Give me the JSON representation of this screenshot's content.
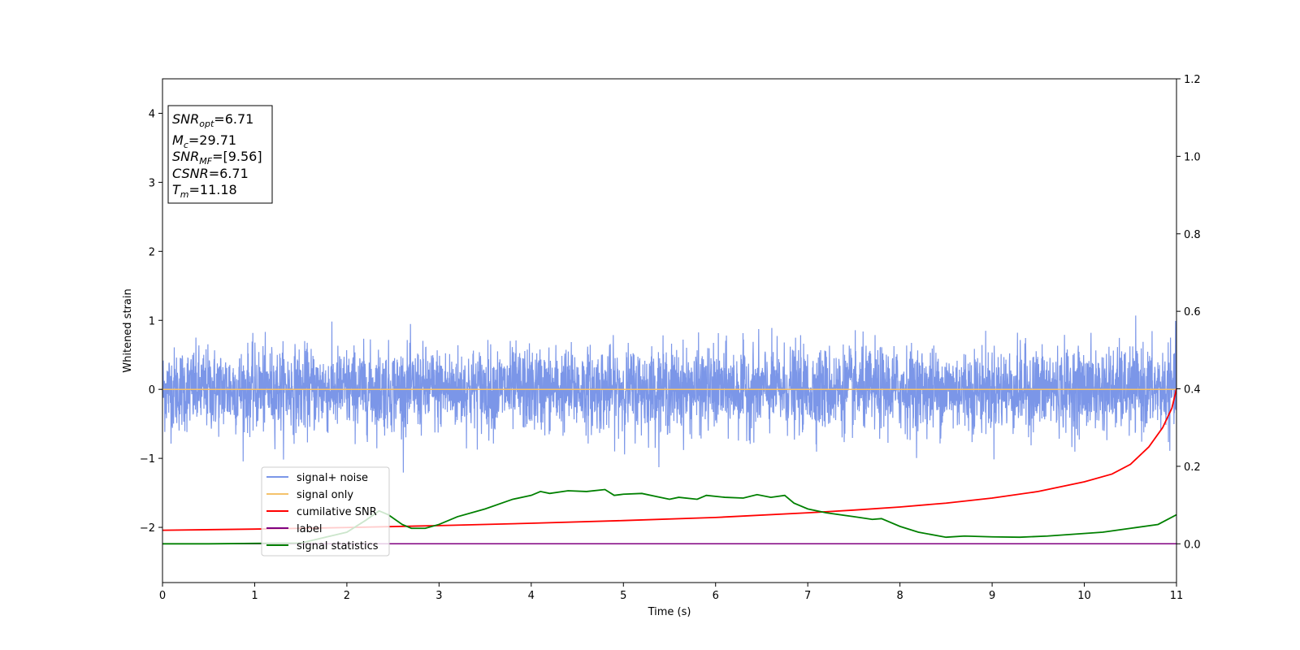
{
  "chart_data": {
    "type": "line",
    "xlabel": "Time (s)",
    "ylabel": "Whitened strain",
    "xlim": [
      0,
      11
    ],
    "ylim_left": [
      -2.8,
      4.5
    ],
    "ylim_right": [
      -0.1,
      1.2
    ],
    "x_ticks": [
      "0",
      "1",
      "2",
      "3",
      "4",
      "5",
      "6",
      "7",
      "8",
      "9",
      "10",
      "11"
    ],
    "y_ticks_left": [
      "4",
      "3",
      "2",
      "1",
      "0",
      "−1",
      "−2"
    ],
    "y_ticks_left_values": [
      4,
      3,
      2,
      1,
      0,
      -1,
      -2
    ],
    "y_ticks_right": [
      "1.2",
      "1.0",
      "0.8",
      "0.6",
      "0.4",
      "0.2",
      "0.0"
    ],
    "y_ticks_right_values": [
      1.2,
      1.0,
      0.8,
      0.6,
      0.4,
      0.2,
      0.0
    ],
    "grid": false,
    "legend_position": "lower-left",
    "info_box": {
      "snr_opt": {
        "base": "SNR",
        "sub": "opt",
        "value": "=6.71"
      },
      "mc": {
        "base": "M",
        "sub": "c",
        "value": "=29.71"
      },
      "snr_mf": {
        "base": "SNR",
        "sub": "MF",
        "value": "=[9.56]"
      },
      "csnr": {
        "base": "CSNR",
        "value": "=6.71"
      },
      "tm": {
        "base": "T",
        "sub": "m",
        "value": "=11.18"
      }
    },
    "series": [
      {
        "name": "signal+ noise",
        "color": "#7b96e8",
        "axis": "left",
        "description_type": "noise",
        "std": 0.3,
        "range_approx": [
          -1.25,
          1.25
        ]
      },
      {
        "name": "signal only",
        "color": "#f5c26b",
        "axis": "left",
        "value": 0
      },
      {
        "name": "cumilative SNR",
        "color": "#ff0000",
        "axis": "right",
        "x": [
          0,
          1,
          2,
          3,
          4,
          5,
          6,
          7,
          7.5,
          8,
          8.5,
          9,
          9.5,
          10,
          10.3,
          10.5,
          10.7,
          10.85,
          10.95,
          11
        ],
        "y": [
          0.035,
          0.038,
          0.042,
          0.047,
          0.053,
          0.06,
          0.068,
          0.08,
          0.087,
          0.095,
          0.105,
          0.118,
          0.135,
          0.16,
          0.18,
          0.205,
          0.25,
          0.3,
          0.35,
          0.4
        ]
      },
      {
        "name": "label",
        "color": "#800080",
        "axis": "right",
        "value": 0.0
      },
      {
        "name": "signal statistics",
        "color": "#008000",
        "axis": "right",
        "x": [
          0,
          0.5,
          1.0,
          1.5,
          2.0,
          2.2,
          2.35,
          2.45,
          2.6,
          2.7,
          2.85,
          3.0,
          3.2,
          3.5,
          3.8,
          4.0,
          4.1,
          4.2,
          4.4,
          4.6,
          4.8,
          4.9,
          5.0,
          5.2,
          5.4,
          5.5,
          5.6,
          5.8,
          5.9,
          6.1,
          6.3,
          6.45,
          6.6,
          6.75,
          6.85,
          7.0,
          7.2,
          7.5,
          7.7,
          7.8,
          8.0,
          8.2,
          8.5,
          8.7,
          9.0,
          9.3,
          9.6,
          9.9,
          10.2,
          10.5,
          10.8,
          11.0
        ],
        "y": [
          0.0,
          0.0,
          0.001,
          0.002,
          0.03,
          0.06,
          0.085,
          0.075,
          0.05,
          0.04,
          0.04,
          0.05,
          0.07,
          0.09,
          0.115,
          0.125,
          0.135,
          0.13,
          0.137,
          0.135,
          0.14,
          0.125,
          0.128,
          0.13,
          0.12,
          0.115,
          0.12,
          0.115,
          0.125,
          0.12,
          0.118,
          0.127,
          0.12,
          0.125,
          0.105,
          0.09,
          0.08,
          0.07,
          0.063,
          0.065,
          0.045,
          0.03,
          0.017,
          0.02,
          0.018,
          0.017,
          0.02,
          0.025,
          0.03,
          0.04,
          0.05,
          0.075
        ]
      }
    ]
  }
}
